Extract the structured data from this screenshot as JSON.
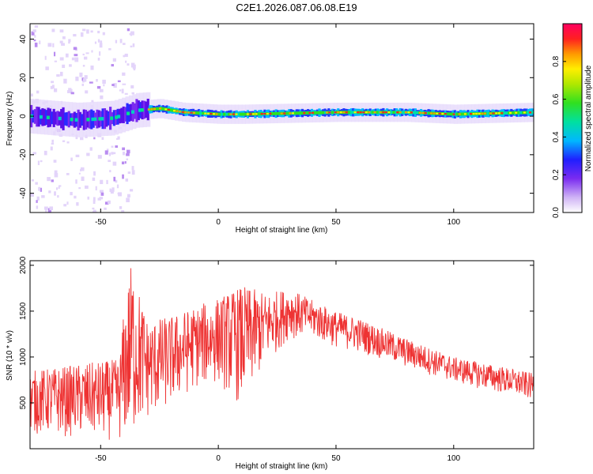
{
  "title": "C2E1.2026.087.06.08.E19",
  "chart_data": [
    {
      "type": "heatmap",
      "xlabel": "Height of straight line (km)",
      "ylabel": "Frequency (Hz)",
      "xlim": [
        -80,
        134
      ],
      "ylim": [
        -50,
        48
      ],
      "xticks": [
        -50,
        0,
        50,
        100
      ],
      "yticks": [
        -40,
        -20,
        0,
        20,
        40
      ],
      "colorbar": {
        "label": "Normalized spectral amplitude",
        "range": [
          0,
          1
        ],
        "ticks": [
          "0.0",
          "0.2",
          "0.4",
          "0.6",
          "0.8"
        ],
        "tick_values": [
          0.0,
          0.2,
          0.4,
          0.6,
          0.8
        ]
      },
      "ridge": [
        {
          "x": -80,
          "y": 0
        },
        {
          "x": -60,
          "y": -2
        },
        {
          "x": -45,
          "y": -1
        },
        {
          "x": -35,
          "y": 3
        },
        {
          "x": -25,
          "y": 4
        },
        {
          "x": -15,
          "y": 2
        },
        {
          "x": 0,
          "y": 1
        },
        {
          "x": 10,
          "y": 1
        },
        {
          "x": 50,
          "y": 2
        },
        {
          "x": 80,
          "y": 2
        },
        {
          "x": 100,
          "y": 1
        },
        {
          "x": 134,
          "y": 2
        }
      ]
    },
    {
      "type": "line",
      "xlabel": "Height of straight line (km)",
      "ylabel": "SNR (10 * v/v)",
      "xlim": [
        -80,
        134
      ],
      "ylim": [
        0,
        2050
      ],
      "xticks": [
        -50,
        0,
        50,
        100
      ],
      "yticks": [
        500,
        1000,
        1500,
        2000
      ],
      "color": "#ee3333",
      "envelope": [
        {
          "x": -80,
          "low": 150,
          "high": 850
        },
        {
          "x": -60,
          "low": 120,
          "high": 920
        },
        {
          "x": -42,
          "low": 80,
          "high": 980
        },
        {
          "x": -40,
          "low": 30,
          "high": 1550
        },
        {
          "x": -37,
          "low": 50,
          "high": 2040
        },
        {
          "x": -30,
          "low": 300,
          "high": 1400
        },
        {
          "x": -20,
          "low": 450,
          "high": 1450
        },
        {
          "x": -10,
          "low": 650,
          "high": 1550
        },
        {
          "x": 0,
          "low": 700,
          "high": 1650
        },
        {
          "x": 10,
          "low": 450,
          "high": 1780
        },
        {
          "x": 20,
          "low": 900,
          "high": 1700
        },
        {
          "x": 30,
          "low": 1200,
          "high": 1750
        },
        {
          "x": 40,
          "low": 1200,
          "high": 1620
        },
        {
          "x": 50,
          "low": 1100,
          "high": 1500
        },
        {
          "x": 60,
          "low": 1050,
          "high": 1420
        },
        {
          "x": 80,
          "low": 880,
          "high": 1200
        },
        {
          "x": 100,
          "low": 720,
          "high": 1000
        },
        {
          "x": 120,
          "low": 600,
          "high": 900
        },
        {
          "x": 134,
          "low": 520,
          "high": 820
        }
      ]
    }
  ]
}
